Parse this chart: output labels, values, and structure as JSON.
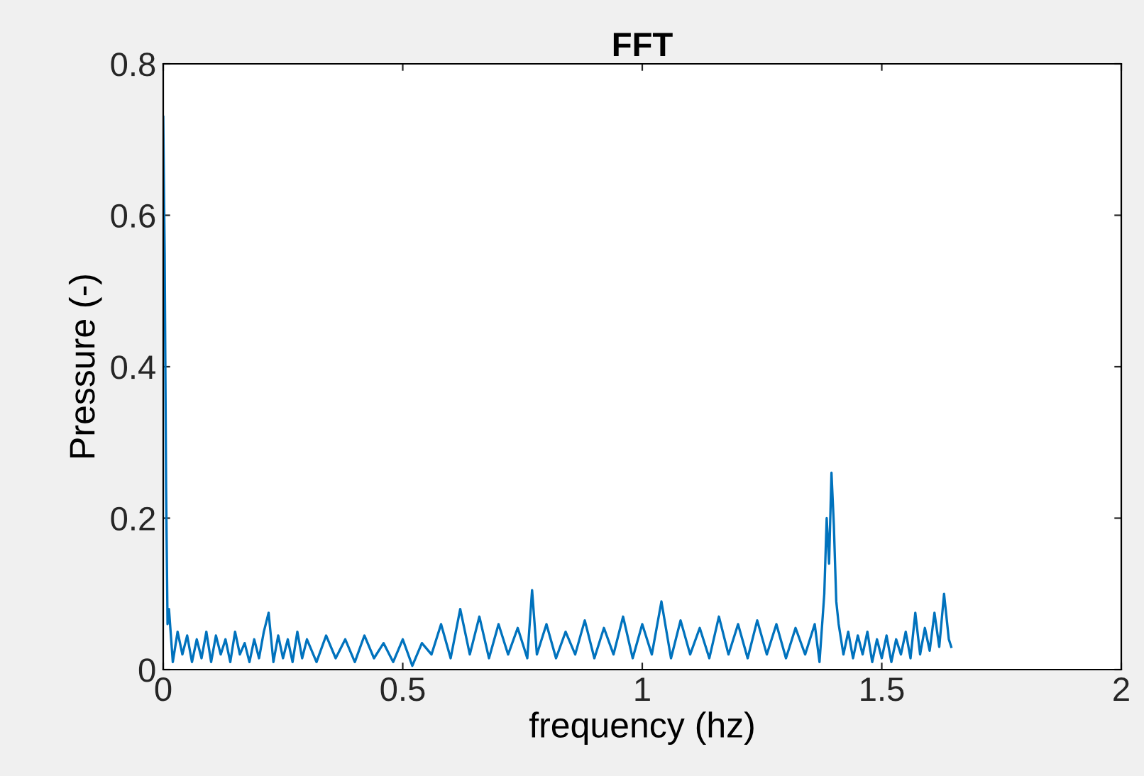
{
  "chart_data": {
    "type": "line",
    "title": "FFT",
    "xlabel": "frequency (hz)",
    "ylabel": "Pressure (-)",
    "xlim": [
      0,
      2
    ],
    "ylim": [
      0,
      0.8
    ],
    "xticks": [
      0,
      0.5,
      1,
      1.5,
      2
    ],
    "yticks": [
      0,
      0.2,
      0.4,
      0.6,
      0.8
    ],
    "grid": false,
    "series": [
      {
        "color": "#0072bd",
        "x": [
          0,
          0.003,
          0.006,
          0.009,
          0.012,
          0.02,
          0.03,
          0.04,
          0.05,
          0.06,
          0.07,
          0.08,
          0.09,
          0.1,
          0.11,
          0.12,
          0.13,
          0.14,
          0.15,
          0.16,
          0.17,
          0.18,
          0.19,
          0.2,
          0.21,
          0.22,
          0.23,
          0.24,
          0.25,
          0.26,
          0.27,
          0.28,
          0.29,
          0.3,
          0.32,
          0.34,
          0.36,
          0.38,
          0.4,
          0.42,
          0.44,
          0.46,
          0.48,
          0.5,
          0.52,
          0.54,
          0.56,
          0.58,
          0.6,
          0.62,
          0.64,
          0.66,
          0.68,
          0.7,
          0.72,
          0.74,
          0.76,
          0.77,
          0.78,
          0.8,
          0.82,
          0.84,
          0.86,
          0.88,
          0.9,
          0.92,
          0.94,
          0.96,
          0.98,
          1.0,
          1.02,
          1.04,
          1.06,
          1.08,
          1.1,
          1.12,
          1.14,
          1.16,
          1.18,
          1.2,
          1.22,
          1.24,
          1.26,
          1.28,
          1.3,
          1.32,
          1.34,
          1.36,
          1.37,
          1.38,
          1.385,
          1.39,
          1.395,
          1.4,
          1.405,
          1.41,
          1.42,
          1.43,
          1.44,
          1.45,
          1.46,
          1.47,
          1.48,
          1.49,
          1.5,
          1.51,
          1.52,
          1.53,
          1.54,
          1.55,
          1.56,
          1.57,
          1.58,
          1.59,
          1.6,
          1.61,
          1.62,
          1.63,
          1.64,
          1.645
        ],
        "values": [
          0.73,
          0.55,
          0.24,
          0.06,
          0.08,
          0.01,
          0.05,
          0.02,
          0.045,
          0.01,
          0.04,
          0.015,
          0.05,
          0.01,
          0.045,
          0.02,
          0.04,
          0.01,
          0.05,
          0.02,
          0.035,
          0.01,
          0.04,
          0.015,
          0.05,
          0.075,
          0.01,
          0.045,
          0.015,
          0.04,
          0.01,
          0.05,
          0.015,
          0.04,
          0.01,
          0.045,
          0.015,
          0.04,
          0.01,
          0.045,
          0.015,
          0.035,
          0.01,
          0.04,
          0.005,
          0.035,
          0.02,
          0.06,
          0.015,
          0.08,
          0.02,
          0.07,
          0.015,
          0.06,
          0.02,
          0.055,
          0.015,
          0.105,
          0.02,
          0.06,
          0.015,
          0.05,
          0.02,
          0.065,
          0.015,
          0.055,
          0.02,
          0.07,
          0.015,
          0.06,
          0.02,
          0.09,
          0.015,
          0.065,
          0.02,
          0.055,
          0.015,
          0.07,
          0.02,
          0.06,
          0.015,
          0.065,
          0.02,
          0.06,
          0.015,
          0.055,
          0.02,
          0.06,
          0.01,
          0.1,
          0.2,
          0.14,
          0.26,
          0.19,
          0.09,
          0.06,
          0.02,
          0.05,
          0.015,
          0.045,
          0.02,
          0.05,
          0.01,
          0.04,
          0.015,
          0.045,
          0.01,
          0.04,
          0.02,
          0.05,
          0.015,
          0.075,
          0.02,
          0.055,
          0.025,
          0.075,
          0.03,
          0.1,
          0.04,
          0.03
        ]
      }
    ]
  }
}
